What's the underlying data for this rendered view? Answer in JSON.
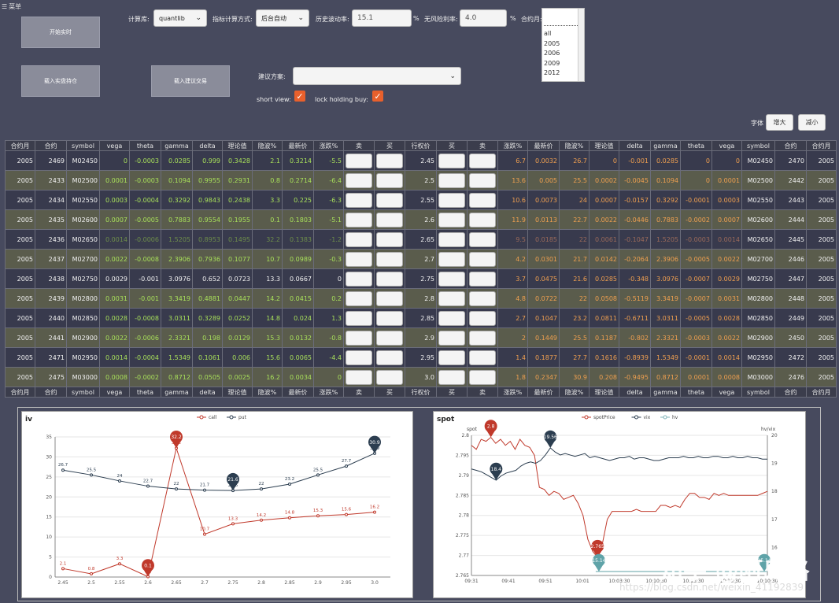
{
  "menu": {
    "label": "菜单"
  },
  "buttons": {
    "start_realtime": "开始实时",
    "load_holdings": "载入实盘持仓",
    "load_suggest_trades": "载入建议交易",
    "font_bigger": "增大",
    "font_smaller": "减小"
  },
  "controls": {
    "calc_lib_label": "计算库:",
    "calc_lib_value": "quantlib",
    "indicator_mode_label": "指标计算方式:",
    "indicator_mode_value": "后台自动",
    "hist_vol_label": "历史波动率:",
    "hist_vol_value": "15.1",
    "hist_vol_unit": "%",
    "risk_free_label": "无风险利率:",
    "risk_free_value": "4.0",
    "risk_free_unit": "%",
    "contract_month_label": "合约月:",
    "contract_month_options": [
      "all",
      "2005",
      "2006",
      "2009",
      "2012"
    ],
    "suggest_plan_label": "建议方案:",
    "suggest_plan_value": "",
    "short_view_label": "short view:",
    "lock_holding_label": "lock holding buy:",
    "font_label": "字体"
  },
  "table": {
    "headers": [
      "合约月",
      "合约",
      "symbol",
      "vega",
      "theta",
      "gamma",
      "delta",
      "理论值",
      "隐波%",
      "最新价",
      "涨跌%",
      "卖",
      "买",
      "行权价",
      "买",
      "卖",
      "涨跌%",
      "最新价",
      "隐波%",
      "理论值",
      "delta",
      "gamma",
      "theta",
      "vega",
      "symbol",
      "合约",
      "合约月"
    ],
    "rows": [
      [
        "2005",
        "2469",
        "M02450",
        "0",
        "-0.0003",
        "0.0285",
        "0.999",
        "0.3428",
        "2.1",
        "0.3214",
        "-5.5",
        "",
        "",
        "2.45",
        "",
        "",
        "6.7",
        "0.0032",
        "26.7",
        "0",
        "-0.001",
        "0.0285",
        "0",
        "0",
        "M02450",
        "2470",
        "2005"
      ],
      [
        "2005",
        "2433",
        "M02500",
        "0.0001",
        "-0.0003",
        "0.1094",
        "0.9955",
        "0.2931",
        "0.8",
        "0.2714",
        "-6.4",
        "",
        "",
        "2.5",
        "",
        "",
        "13.6",
        "0.005",
        "25.5",
        "0.0002",
        "-0.0045",
        "0.1094",
        "0",
        "0.0001",
        "M02500",
        "2442",
        "2005"
      ],
      [
        "2005",
        "2434",
        "M02550",
        "0.0003",
        "-0.0004",
        "0.3292",
        "0.9843",
        "0.2438",
        "3.3",
        "0.225",
        "-6.3",
        "",
        "",
        "2.55",
        "",
        "",
        "10.6",
        "0.0073",
        "24",
        "0.0007",
        "-0.0157",
        "0.3292",
        "-0.0001",
        "0.0003",
        "M02550",
        "2443",
        "2005"
      ],
      [
        "2005",
        "2435",
        "M02600",
        "0.0007",
        "-0.0005",
        "0.7883",
        "0.9554",
        "0.1955",
        "0.1",
        "0.1803",
        "-5.1",
        "",
        "",
        "2.6",
        "",
        "",
        "11.9",
        "0.0113",
        "22.7",
        "0.0022",
        "-0.0446",
        "0.7883",
        "-0.0002",
        "0.0007",
        "M02600",
        "2444",
        "2005"
      ],
      [
        "2005",
        "2436",
        "M02650",
        "0.0014",
        "-0.0006",
        "1.5205",
        "0.8953",
        "0.1495",
        "32.2",
        "0.1383",
        "-1.2",
        "",
        "",
        "2.65",
        "",
        "",
        "9.5",
        "0.0185",
        "22",
        "0.0061",
        "-0.1047",
        "1.5205",
        "-0.0003",
        "0.0014",
        "M02650",
        "2445",
        "2005"
      ],
      [
        "2005",
        "2437",
        "M02700",
        "0.0022",
        "-0.0008",
        "2.3906",
        "0.7936",
        "0.1077",
        "10.7",
        "0.0989",
        "-0.3",
        "",
        "",
        "2.7",
        "",
        "",
        "4.2",
        "0.0301",
        "21.7",
        "0.0142",
        "-0.2064",
        "2.3906",
        "-0.0005",
        "0.0022",
        "M02700",
        "2446",
        "2005"
      ],
      [
        "2005",
        "2438",
        "M02750",
        "0.0029",
        "-0.001",
        "3.0976",
        "0.652",
        "0.0723",
        "13.3",
        "0.0667",
        "0",
        "",
        "",
        "2.75",
        "",
        "",
        "3.7",
        "0.0475",
        "21.6",
        "0.0285",
        "-0.348",
        "3.0976",
        "-0.0007",
        "0.0029",
        "M02750",
        "2447",
        "2005"
      ],
      [
        "2005",
        "2439",
        "M02800",
        "0.0031",
        "-0.001",
        "3.3419",
        "0.4881",
        "0.0447",
        "14.2",
        "0.0415",
        "0.2",
        "",
        "",
        "2.8",
        "",
        "",
        "4.8",
        "0.0722",
        "22",
        "0.0508",
        "-0.5119",
        "3.3419",
        "-0.0007",
        "0.0031",
        "M02800",
        "2448",
        "2005"
      ],
      [
        "2005",
        "2440",
        "M02850",
        "0.0028",
        "-0.0008",
        "3.0311",
        "0.3289",
        "0.0252",
        "14.8",
        "0.024",
        "1.3",
        "",
        "",
        "2.85",
        "",
        "",
        "2.7",
        "0.1047",
        "23.2",
        "0.0811",
        "-0.6711",
        "3.0311",
        "-0.0005",
        "0.0028",
        "M02850",
        "2449",
        "2005"
      ],
      [
        "2005",
        "2441",
        "M02900",
        "0.0022",
        "-0.0006",
        "2.3321",
        "0.198",
        "0.0129",
        "15.3",
        "0.0132",
        "-0.8",
        "",
        "",
        "2.9",
        "",
        "",
        "2",
        "0.1449",
        "25.5",
        "0.1187",
        "-0.802",
        "2.3321",
        "-0.0003",
        "0.0022",
        "M02900",
        "2450",
        "2005"
      ],
      [
        "2005",
        "2471",
        "M02950",
        "0.0014",
        "-0.0004",
        "1.5349",
        "0.1061",
        "0.006",
        "15.6",
        "0.0065",
        "-4.4",
        "",
        "",
        "2.95",
        "",
        "",
        "1.4",
        "0.1877",
        "27.7",
        "0.1616",
        "-0.8939",
        "1.5349",
        "-0.0001",
        "0.0014",
        "M02950",
        "2472",
        "2005"
      ],
      [
        "2005",
        "2475",
        "M03000",
        "0.0008",
        "-0.0002",
        "0.8712",
        "0.0505",
        "0.0025",
        "16.2",
        "0.0034",
        "0",
        "",
        "",
        "3.0",
        "",
        "",
        "1.8",
        "0.2347",
        "30.9",
        "0.208",
        "-0.9495",
        "0.8712",
        "0.0001",
        "0.0008",
        "M03000",
        "2476",
        "2005"
      ]
    ]
  },
  "chart_data": [
    {
      "type": "line",
      "title": "iv",
      "x": [
        "2.45",
        "2.5",
        "2.55",
        "2.6",
        "2.65",
        "2.7",
        "2.75",
        "2.8",
        "2.85",
        "2.9",
        "2.95",
        "3.0"
      ],
      "series": [
        {
          "name": "call",
          "values": [
            2.1,
            0.8,
            3.3,
            0.1,
            32.2,
            10.7,
            13.3,
            14.2,
            14.8,
            15.3,
            15.6,
            16.2
          ],
          "color": "#c0392b"
        },
        {
          "name": "put",
          "values": [
            26.7,
            25.5,
            24,
            22.7,
            22,
            21.7,
            21.6,
            22,
            23.2,
            25.5,
            27.7,
            30.9
          ],
          "color": "#2c3e50"
        }
      ],
      "ylim": [
        0,
        35
      ],
      "yticks": [
        0,
        5,
        10,
        15,
        20,
        25,
        30,
        35
      ],
      "max_markers": {
        "call": 32.2,
        "put": 30.9
      },
      "min_markers": {
        "call": 0.1,
        "put": 21.6
      },
      "grid": true,
      "legend": "top-center"
    },
    {
      "type": "line",
      "title": "spot",
      "left_axis_label": "spot",
      "right_axis_label": "hv/vix",
      "x_ticks": [
        "09:31",
        "09:41",
        "09:51",
        "10:01",
        "10:03:30",
        "10:10:30",
        "10:13:30",
        "10:10:30",
        "10:10:30"
      ],
      "ylim_left": [
        2.765,
        2.8
      ],
      "yticks_left": [
        2.765,
        2.77,
        2.775,
        2.78,
        2.785,
        2.79,
        2.795,
        2.8
      ],
      "ylim_right": [
        15,
        20
      ],
      "yticks_right": [
        16,
        17,
        18,
        19,
        20
      ],
      "series": [
        {
          "name": "spotPrice",
          "axis": "left",
          "color": "#c0392b",
          "values": [
            2.7975,
            2.7965,
            2.799,
            2.7985,
            2.7995,
            2.798,
            2.799,
            2.7975,
            2.7985,
            2.7965,
            2.799,
            2.7975,
            2.797,
            2.795,
            2.787,
            2.7865,
            2.785,
            2.786,
            2.7855,
            2.784,
            2.7845,
            2.785,
            2.783,
            2.78,
            2.774,
            2.771,
            2.7695,
            2.773,
            2.779,
            2.781,
            2.781,
            2.781,
            2.781,
            2.781,
            2.7815,
            2.781,
            2.781,
            2.781,
            2.781,
            2.7825,
            2.7825,
            2.782,
            2.7825,
            2.782,
            2.784,
            2.7855,
            2.7855,
            2.7845,
            2.7845,
            2.784,
            2.7855,
            2.785,
            2.7855,
            2.785,
            2.785,
            2.785,
            2.785,
            2.785,
            2.785,
            2.785,
            2.7855,
            2.786
          ]
        },
        {
          "name": "vix",
          "axis": "right",
          "color": "#2c3e50",
          "values": [
            18.8,
            18.75,
            18.7,
            18.6,
            18.5,
            18.4,
            18.55,
            18.65,
            18.7,
            18.75,
            18.9,
            19.0,
            19.05,
            19.0,
            19.1,
            19.3,
            19.55,
            19.4,
            19.3,
            19.35,
            19.3,
            19.25,
            19.3,
            19.35,
            19.2,
            19.25,
            19.2,
            19.15,
            19.1,
            19.15,
            19.2,
            19.2,
            19.25,
            19.15,
            19.2,
            19.2,
            19.15,
            19.1,
            19.1,
            19.15,
            19.2,
            19.2,
            19.2,
            19.25,
            19.2,
            19.2,
            19.25,
            19.2,
            19.2,
            19.25,
            19.25,
            19.2,
            19.2,
            19.25,
            19.2,
            19.2,
            19.25,
            19.2,
            19.2,
            19.15,
            19.15
          ]
        },
        {
          "name": "hv",
          "axis": "right",
          "color": "#7fb3b8",
          "values": [
            15.14,
            15.14,
            15.14,
            15.14,
            15.14,
            15.14,
            15.14,
            15.14,
            15.14,
            15.14,
            15.14,
            15.14
          ]
        }
      ],
      "markers": [
        {
          "label": "2.8",
          "series": "spotPrice",
          "kind": "max"
        },
        {
          "label": "2.765",
          "series": "spotPrice",
          "kind": "min"
        },
        {
          "label": "19.56",
          "series": "vix",
          "kind": "max"
        },
        {
          "label": "18.4",
          "series": "vix",
          "kind": "min"
        },
        {
          "label": "15.14",
          "series": "hv",
          "kind": "min"
        },
        {
          "label": "15.14",
          "series": "hv",
          "kind": "max"
        }
      ],
      "grid": true,
      "legend": "top-center"
    }
  ],
  "watermark": {
    "text": "知乎 @阿岛格",
    "url": "https://blog.csdn.net/weixin_41192839"
  }
}
